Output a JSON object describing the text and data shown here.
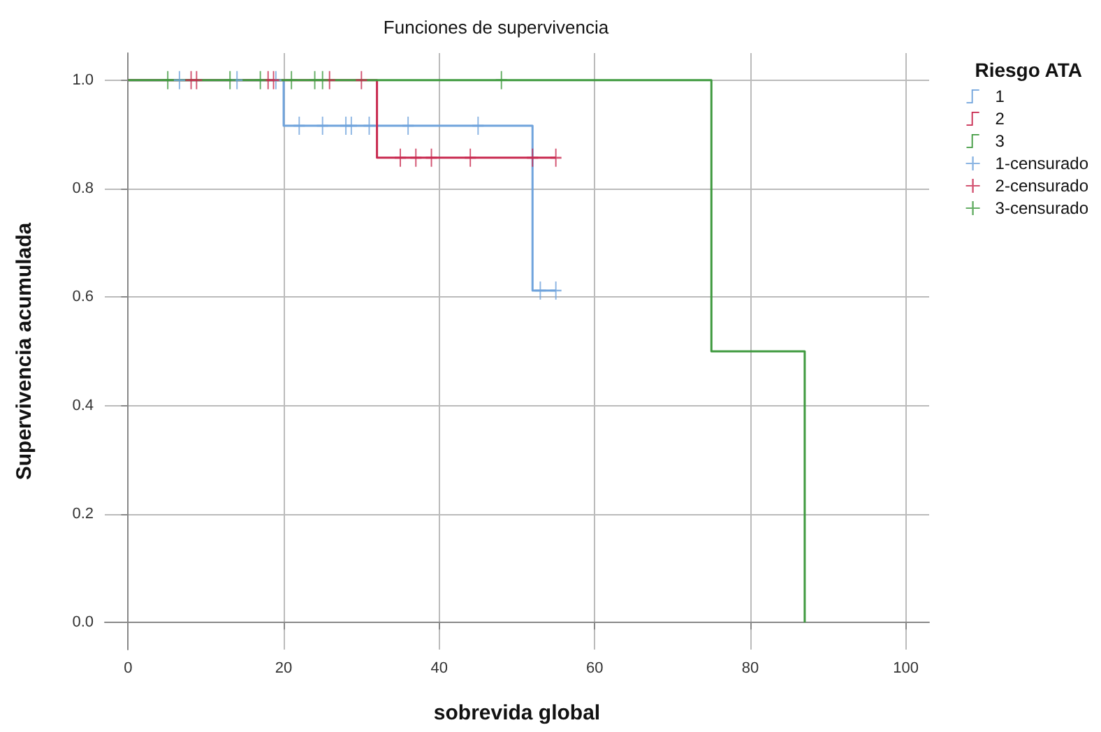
{
  "chart_data": {
    "type": "step",
    "title": "Funciones de supervivencia",
    "xlabel": "sobrevida global",
    "ylabel": "Supervivencia acumulada",
    "legend_title": "Riesgo ATA",
    "legend": "top right",
    "grid": true,
    "xlim": [
      -3,
      103
    ],
    "xticks": [
      0,
      20,
      40,
      60,
      80,
      100
    ],
    "ylim": [
      -0.05,
      1.05
    ],
    "yticks": [
      {
        "value": 0,
        "label": "0.0"
      },
      {
        "value": 0.2,
        "label": "0.2"
      },
      {
        "value": 0.4,
        "label": "0.4"
      },
      {
        "value": 0.6,
        "label": "0.6"
      },
      {
        "value": 0.8,
        "label": "0.8"
      },
      {
        "value": 1,
        "label": "1.0"
      }
    ],
    "series": [
      {
        "name": "1",
        "color": "#6fa3dc",
        "x": [
          0,
          20,
          52,
          55
        ],
        "values": [
          1,
          0.916,
          0.612,
          0.612
        ]
      },
      {
        "name": "2",
        "color": "#c8294f",
        "x": [
          0,
          32,
          55
        ],
        "values": [
          1,
          0.857,
          0.857
        ]
      },
      {
        "name": "3",
        "color": "#3f9a3f",
        "x": [
          0,
          75,
          87
        ],
        "values": [
          1,
          0.5,
          0
        ]
      },
      {
        "name": "1-censurado",
        "type": "scatter",
        "marker": "cross",
        "color": "#6fa3dc",
        "x": [
          6.6,
          14,
          19,
          22,
          25,
          28,
          28.7,
          31,
          36,
          45,
          53,
          55
        ],
        "values": [
          1,
          1,
          1,
          0.916,
          0.916,
          0.916,
          0.916,
          0.916,
          0.916,
          0.916,
          0.612,
          0.612
        ]
      },
      {
        "name": "2-censurado",
        "type": "scatter",
        "marker": "cross",
        "color": "#c8294f",
        "x": [
          8.1,
          8.8,
          18,
          18.7,
          25.9,
          30,
          35,
          37,
          39,
          44,
          52,
          55
        ],
        "values": [
          1,
          1,
          1,
          1,
          1,
          1,
          0.857,
          0.857,
          0.857,
          0.857,
          0.857,
          0.857
        ]
      },
      {
        "name": "3-censurado",
        "type": "scatter",
        "marker": "cross",
        "color": "#3f9a3f",
        "x": [
          5.1,
          13.1,
          17,
          21,
          24,
          25,
          48
        ],
        "values": [
          1,
          1,
          1,
          1,
          1,
          1,
          1
        ]
      }
    ]
  }
}
